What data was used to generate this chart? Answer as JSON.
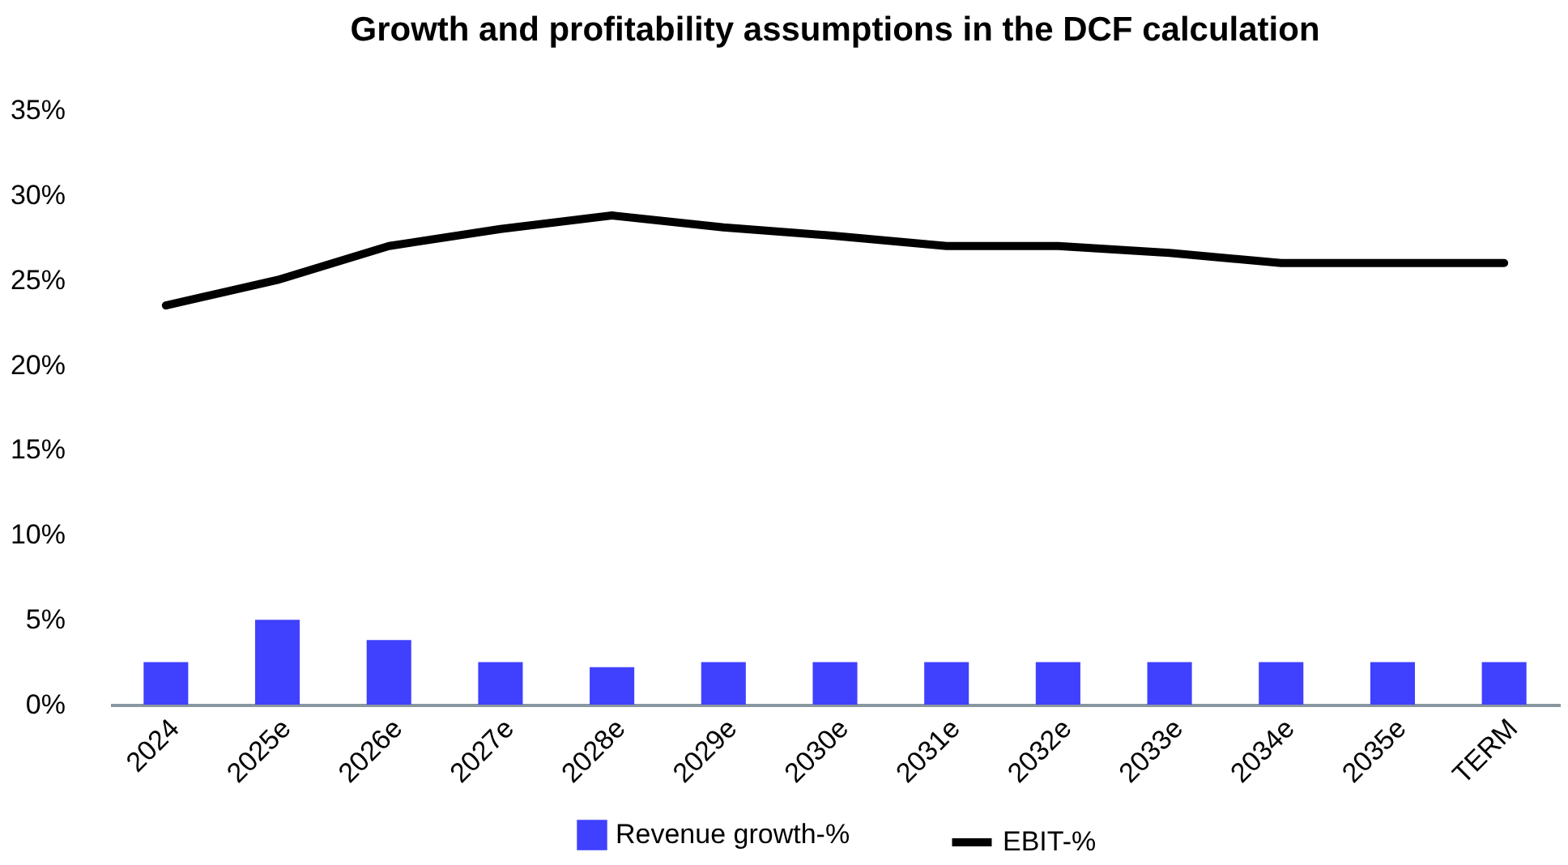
{
  "chart_data": {
    "type": "bar",
    "title": "Growth and profitability assumptions in the DCF calculation",
    "categories": [
      "2024",
      "2025e",
      "2026e",
      "2027e",
      "2028e",
      "2029e",
      "2030e",
      "2031e",
      "2032e",
      "2033e",
      "2034e",
      "2035e",
      "TERM"
    ],
    "series": [
      {
        "name": "Revenue growth-%",
        "color": "#4040ff",
        "values": [
          2.5,
          5.0,
          3.8,
          2.5,
          2.2,
          2.5,
          2.5,
          2.5,
          2.5,
          2.5,
          2.5,
          2.5,
          2.5
        ]
      },
      {
        "name": "EBIT-%",
        "type": "line",
        "color": "#000000",
        "values": [
          23.5,
          25.0,
          27.0,
          28.0,
          28.8,
          28.1,
          27.6,
          27.0,
          27.0,
          26.6,
          26.0,
          26.0,
          26.0
        ]
      }
    ],
    "ylim": [
      0,
      35
    ],
    "yticks": [
      {
        "value": 0,
        "label": "0%"
      },
      {
        "value": 5,
        "label": "5%"
      },
      {
        "value": 10,
        "label": "10%"
      },
      {
        "value": 15,
        "label": "15%"
      },
      {
        "value": 20,
        "label": "20%"
      },
      {
        "value": 25,
        "label": "25%"
      },
      {
        "value": 30,
        "label": "30%"
      },
      {
        "value": 35,
        "label": "35%"
      }
    ],
    "grid": false,
    "legend": "bottom"
  }
}
